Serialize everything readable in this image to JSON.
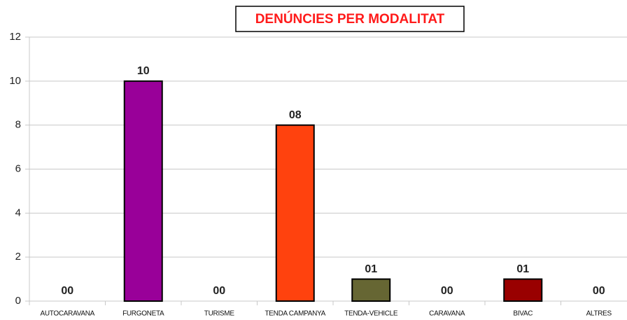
{
  "chart_data": {
    "type": "bar",
    "title": "DENÚNCIES PER MODALITAT",
    "categories": [
      "AUTOCARAVANA",
      "FURGONETA",
      "TURISME",
      "TENDA CAMPANYA",
      "TENDA-VEHICLE",
      "CARAVANA",
      "BIVAC",
      "ALTRES"
    ],
    "values": [
      0,
      10,
      0,
      8,
      1,
      0,
      1,
      0
    ],
    "value_labels": [
      "00",
      "10",
      "00",
      "08",
      "01",
      "00",
      "01",
      "00"
    ],
    "colors": [
      "#004586",
      "#990099",
      "#ffd320",
      "#ff420e",
      "#666633",
      "#83caff",
      "#990000",
      "#aecf00"
    ],
    "ylim": [
      0,
      12
    ],
    "yticks": [
      0,
      2,
      4,
      6,
      8,
      10,
      12
    ],
    "grid": true
  }
}
